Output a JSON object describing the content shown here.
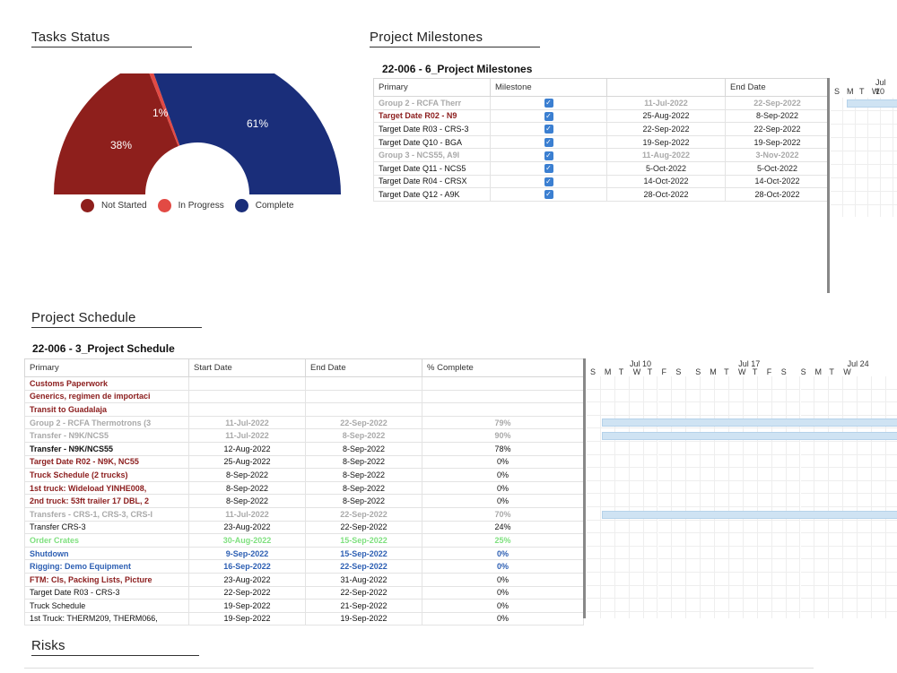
{
  "tasks_status": {
    "title": "Tasks Status",
    "labels": {
      "not_started": "38%",
      "in_progress": "1%",
      "complete": "61%"
    },
    "legend": [
      "Not Started",
      "In Progress",
      "Complete"
    ],
    "colors": {
      "not_started": "#8e1f1c",
      "in_progress": "#e24a44",
      "complete": "#1a2e7a"
    }
  },
  "chart_data": {
    "type": "pie",
    "title": "Tasks Status",
    "categories": [
      "Not Started",
      "In Progress",
      "Complete"
    ],
    "values": [
      38,
      1,
      61
    ]
  },
  "milestones": {
    "title": "Project Milestones",
    "subtitle": "22-006 - 6_Project Milestones",
    "columns": [
      "Primary",
      "Milestone",
      "",
      "End Date"
    ],
    "rows": [
      {
        "primary": "Group 2 - RCFA Therr",
        "start": "11-Jul-2022",
        "end": "22-Sep-2022",
        "style": "grey"
      },
      {
        "primary": "Target Date R02 - N9",
        "start": "25-Aug-2022",
        "end": "8-Sep-2022",
        "style": "red"
      },
      {
        "primary": "Target Date R03 - CRS-3",
        "start": "22-Sep-2022",
        "end": "22-Sep-2022",
        "style": "blk"
      },
      {
        "primary": "Target Date Q10 - BGA",
        "start": "19-Sep-2022",
        "end": "19-Sep-2022",
        "style": "blk"
      },
      {
        "primary": "Group 3 - NCS55, A9I",
        "start": "11-Aug-2022",
        "end": "3-Nov-2022",
        "style": "grey"
      },
      {
        "primary": "Target Date Q11 - NCS5",
        "start": "5-Oct-2022",
        "end": "5-Oct-2022",
        "style": "blk"
      },
      {
        "primary": "Target Date R04 - CRSX",
        "start": "14-Oct-2022",
        "end": "14-Oct-2022",
        "style": "blk"
      },
      {
        "primary": "Target Date Q12 - A9K",
        "start": "28-Oct-2022",
        "end": "28-Oct-2022",
        "style": "blk"
      }
    ],
    "gantt": {
      "month": "Jul 10",
      "days": [
        "S",
        "M",
        "T",
        "W"
      ]
    },
    "checkmark": "✓"
  },
  "schedule": {
    "title": "Project Schedule",
    "subtitle": "22-006 - 3_Project Schedule",
    "columns": [
      "Primary",
      "Start Date",
      "End Date",
      "% Complete"
    ],
    "rows": [
      {
        "primary": "Customs Paperwork",
        "start": "",
        "end": "",
        "pct": "",
        "style": "red"
      },
      {
        "primary": "Generics, regimen de importaci",
        "start": "",
        "end": "",
        "pct": "",
        "style": "red"
      },
      {
        "primary": "Transit to Guadalaja",
        "start": "",
        "end": "",
        "pct": "",
        "style": "red"
      },
      {
        "primary": "Group 2 - RCFA Thermotrons (3",
        "start": "11-Jul-2022",
        "end": "22-Sep-2022",
        "pct": "79%",
        "style": "grey"
      },
      {
        "primary": "Transfer - N9K/NCS5",
        "start": "11-Jul-2022",
        "end": "8-Sep-2022",
        "pct": "90%",
        "style": "grey"
      },
      {
        "primary": "Transfer - N9K/NCS55",
        "start": "12-Aug-2022",
        "end": "8-Sep-2022",
        "pct": "78%",
        "style": "blkb"
      },
      {
        "primary": "Target Date R02 - N9K, NC55",
        "start": "25-Aug-2022",
        "end": "8-Sep-2022",
        "pct": "0%",
        "style": "red"
      },
      {
        "primary": "Truck Schedule (2 trucks)",
        "start": "8-Sep-2022",
        "end": "8-Sep-2022",
        "pct": "0%",
        "style": "red"
      },
      {
        "primary": "1st truck: Wideload YINHE008,",
        "start": "8-Sep-2022",
        "end": "8-Sep-2022",
        "pct": "0%",
        "style": "red"
      },
      {
        "primary": "2nd truck: 53ft trailer 17 DBL, 2",
        "start": "8-Sep-2022",
        "end": "8-Sep-2022",
        "pct": "0%",
        "style": "red"
      },
      {
        "primary": "Transfers - CRS-1, CRS-3, CRS-I",
        "start": "11-Jul-2022",
        "end": "22-Sep-2022",
        "pct": "70%",
        "style": "grey"
      },
      {
        "primary": "Transfer CRS-3",
        "start": "23-Aug-2022",
        "end": "22-Sep-2022",
        "pct": "24%",
        "style": "blk"
      },
      {
        "primary": "Order Crates",
        "start": "30-Aug-2022",
        "end": "15-Sep-2022",
        "pct": "25%",
        "style": "green"
      },
      {
        "primary": "Shutdown",
        "start": "9-Sep-2022",
        "end": "15-Sep-2022",
        "pct": "0%",
        "style": "blue"
      },
      {
        "primary": "Rigging: Demo Equipment",
        "start": "16-Sep-2022",
        "end": "22-Sep-2022",
        "pct": "0%",
        "style": "blue"
      },
      {
        "primary": "FTM: CIs, Packing Lists, Picture",
        "start": "23-Aug-2022",
        "end": "31-Aug-2022",
        "pct": "0%",
        "style": "red"
      },
      {
        "primary": "Target Date R03 - CRS-3",
        "start": "22-Sep-2022",
        "end": "22-Sep-2022",
        "pct": "0%",
        "style": "blk"
      },
      {
        "primary": "Truck Schedule",
        "start": "19-Sep-2022",
        "end": "21-Sep-2022",
        "pct": "0%",
        "style": "blk"
      },
      {
        "primary": "1st Truck: THERM209, THERM066,",
        "start": "19-Sep-2022",
        "end": "19-Sep-2022",
        "pct": "0%",
        "style": "blk"
      }
    ],
    "gantt": {
      "months": [
        "Jul 10",
        "Jul 17",
        "Jul 24"
      ],
      "days": [
        "S",
        "M",
        "T",
        "W",
        "T",
        "F",
        "S",
        "S",
        "M",
        "T",
        "W",
        "T",
        "F",
        "S",
        "S",
        "M",
        "T",
        "W"
      ]
    }
  },
  "risks": {
    "title": "Risks"
  }
}
